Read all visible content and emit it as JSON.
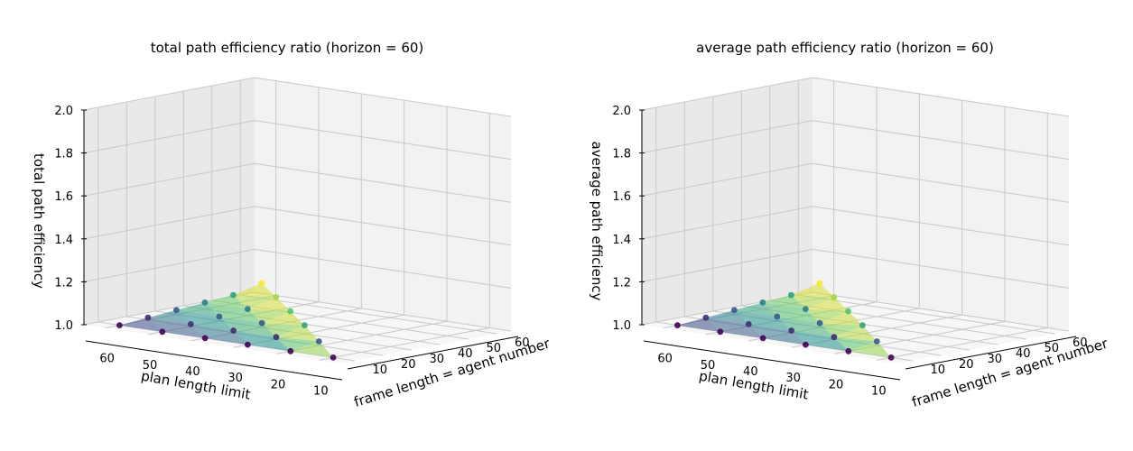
{
  "colors": {
    "pane_back": "#f2f2f2",
    "pane_left": "#e9e9e9",
    "pane_floor": "#f7f7f7",
    "grid": "#c8c8c8",
    "viridis": [
      "#440154",
      "#3b528b",
      "#21918c",
      "#5ec962",
      "#fde725"
    ]
  },
  "chart_data": [
    {
      "type": "scatter3d_surface",
      "title": "total path efficiency ratio (horizon = 60)",
      "xlabel": "frame length = agent number",
      "ylabel": "plan length limit",
      "zlabel": "total path efficiency",
      "xticks": [
        10,
        20,
        30,
        40,
        50,
        60
      ],
      "yticks": [
        10,
        20,
        30,
        40,
        50,
        60
      ],
      "zticks": [
        "1.0",
        "1.2",
        "1.4",
        "1.6",
        "1.8",
        "2.0"
      ],
      "xlim": [
        5,
        65
      ],
      "ylim": [
        5,
        65
      ],
      "zlim": [
        1.0,
        2.0
      ],
      "grid": true,
      "points": [
        {
          "x": 10,
          "y": 10,
          "z": 1.0
        },
        {
          "x": 10,
          "y": 20,
          "z": 1.0
        },
        {
          "x": 10,
          "y": 30,
          "z": 1.0
        },
        {
          "x": 10,
          "y": 40,
          "z": 1.0
        },
        {
          "x": 10,
          "y": 50,
          "z": 1.0
        },
        {
          "x": 10,
          "y": 60,
          "z": 1.0
        },
        {
          "x": 20,
          "y": 20,
          "z": 1.02
        },
        {
          "x": 20,
          "y": 30,
          "z": 1.01
        },
        {
          "x": 20,
          "y": 40,
          "z": 1.01
        },
        {
          "x": 20,
          "y": 50,
          "z": 1.01
        },
        {
          "x": 20,
          "y": 60,
          "z": 1.01
        },
        {
          "x": 30,
          "y": 30,
          "z": 1.04
        },
        {
          "x": 30,
          "y": 40,
          "z": 1.02
        },
        {
          "x": 30,
          "y": 50,
          "z": 1.02
        },
        {
          "x": 30,
          "y": 60,
          "z": 1.02
        },
        {
          "x": 40,
          "y": 40,
          "z": 1.05
        },
        {
          "x": 40,
          "y": 50,
          "z": 1.03
        },
        {
          "x": 40,
          "y": 60,
          "z": 1.03
        },
        {
          "x": 50,
          "y": 50,
          "z": 1.06
        },
        {
          "x": 50,
          "y": 60,
          "z": 1.04
        },
        {
          "x": 60,
          "y": 60,
          "z": 1.07
        }
      ]
    },
    {
      "type": "scatter3d_surface",
      "title": "average path efficiency ratio (horizon = 60)",
      "xlabel": "frame length = agent number",
      "ylabel": "plan length limit",
      "zlabel": "average path efficiency",
      "xticks": [
        10,
        20,
        30,
        40,
        50,
        60
      ],
      "yticks": [
        10,
        20,
        30,
        40,
        50,
        60
      ],
      "zticks": [
        "1.0",
        "1.2",
        "1.4",
        "1.6",
        "1.8",
        "2.0"
      ],
      "xlim": [
        5,
        65
      ],
      "ylim": [
        5,
        65
      ],
      "zlim": [
        1.0,
        2.0
      ],
      "grid": true,
      "points": [
        {
          "x": 10,
          "y": 10,
          "z": 1.0
        },
        {
          "x": 10,
          "y": 20,
          "z": 1.0
        },
        {
          "x": 10,
          "y": 30,
          "z": 1.0
        },
        {
          "x": 10,
          "y": 40,
          "z": 1.0
        },
        {
          "x": 10,
          "y": 50,
          "z": 1.0
        },
        {
          "x": 10,
          "y": 60,
          "z": 1.0
        },
        {
          "x": 20,
          "y": 20,
          "z": 1.02
        },
        {
          "x": 20,
          "y": 30,
          "z": 1.01
        },
        {
          "x": 20,
          "y": 40,
          "z": 1.01
        },
        {
          "x": 20,
          "y": 50,
          "z": 1.01
        },
        {
          "x": 20,
          "y": 60,
          "z": 1.01
        },
        {
          "x": 30,
          "y": 30,
          "z": 1.04
        },
        {
          "x": 30,
          "y": 40,
          "z": 1.02
        },
        {
          "x": 30,
          "y": 50,
          "z": 1.02
        },
        {
          "x": 30,
          "y": 60,
          "z": 1.02
        },
        {
          "x": 40,
          "y": 40,
          "z": 1.05
        },
        {
          "x": 40,
          "y": 50,
          "z": 1.03
        },
        {
          "x": 40,
          "y": 60,
          "z": 1.03
        },
        {
          "x": 50,
          "y": 50,
          "z": 1.06
        },
        {
          "x": 50,
          "y": 60,
          "z": 1.04
        },
        {
          "x": 60,
          "y": 60,
          "z": 1.07
        }
      ]
    }
  ]
}
